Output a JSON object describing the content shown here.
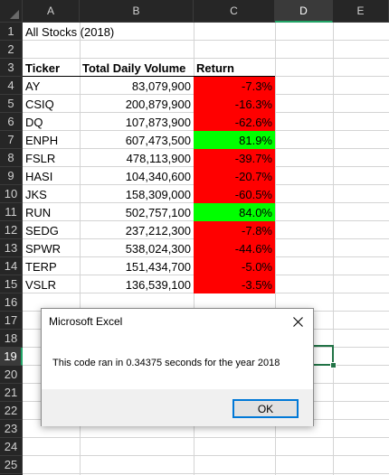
{
  "columns": [
    "A",
    "B",
    "C",
    "D",
    "E"
  ],
  "selected_column": "D",
  "rows": [
    "1",
    "2",
    "3",
    "4",
    "5",
    "6",
    "7",
    "8",
    "9",
    "10",
    "11",
    "12",
    "13",
    "14",
    "15",
    "16",
    "17",
    "18",
    "19",
    "20",
    "21",
    "22",
    "23",
    "24",
    "25"
  ],
  "selected_row": "19",
  "sheet": {
    "title": "All Stocks (2018)",
    "headers": {
      "ticker": "Ticker",
      "volume": "Total Daily Volume",
      "return": "Return"
    },
    "data": [
      {
        "ticker": "AY",
        "volume": "83,079,900",
        "return": "-7.3%",
        "status": "negative"
      },
      {
        "ticker": "CSIQ",
        "volume": "200,879,900",
        "return": "-16.3%",
        "status": "negative"
      },
      {
        "ticker": "DQ",
        "volume": "107,873,900",
        "return": "-62.6%",
        "status": "negative"
      },
      {
        "ticker": "ENPH",
        "volume": "607,473,500",
        "return": "81.9%",
        "status": "positive"
      },
      {
        "ticker": "FSLR",
        "volume": "478,113,900",
        "return": "-39.7%",
        "status": "negative"
      },
      {
        "ticker": "HASI",
        "volume": "104,340,600",
        "return": "-20.7%",
        "status": "negative"
      },
      {
        "ticker": "JKS",
        "volume": "158,309,000",
        "return": "-60.5%",
        "status": "negative"
      },
      {
        "ticker": "RUN",
        "volume": "502,757,100",
        "return": "84.0%",
        "status": "positive"
      },
      {
        "ticker": "SEDG",
        "volume": "237,212,300",
        "return": "-7.8%",
        "status": "negative"
      },
      {
        "ticker": "SPWR",
        "volume": "538,024,300",
        "return": "-44.6%",
        "status": "negative"
      },
      {
        "ticker": "TERP",
        "volume": "151,434,700",
        "return": "-5.0%",
        "status": "negative"
      },
      {
        "ticker": "VSLR",
        "volume": "136,539,100",
        "return": "-3.5%",
        "status": "negative"
      }
    ]
  },
  "colors": {
    "negative": "#ff0000",
    "positive": "#00ff00",
    "selection": "#217346"
  },
  "dialog": {
    "title": "Microsoft Excel",
    "message": "This code ran in 0.34375 seconds for the year 2018",
    "ok_label": "OK",
    "close_icon": "close-icon"
  }
}
